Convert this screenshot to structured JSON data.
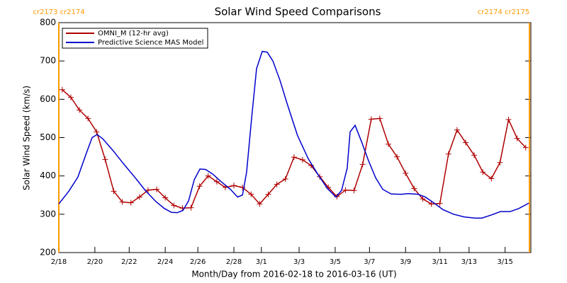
{
  "chart_data": {
    "type": "line",
    "title": "Solar Wind Speed Comparisons",
    "x_label": "Month/Day from 2016-02-18 to 2016-03-16 (UT)",
    "y_label": "Solar Wind Speed (km/s)",
    "xlim": [
      0,
      27.5
    ],
    "ylim": [
      200,
      800
    ],
    "yticks": [
      200,
      300,
      400,
      500,
      600,
      700,
      800
    ],
    "xticks": [
      {
        "value": 0,
        "label": "2/18"
      },
      {
        "value": 2.1,
        "label": "2/20"
      },
      {
        "value": 4.1,
        "label": "2/22"
      },
      {
        "value": 6.2,
        "label": "2/24"
      },
      {
        "value": 8.1,
        "label": "2/26"
      },
      {
        "value": 10.2,
        "label": "2/28"
      },
      {
        "value": 11.8,
        "label": "3/1"
      },
      {
        "value": 14.0,
        "label": "3/3"
      },
      {
        "value": 16.1,
        "label": "3/5"
      },
      {
        "value": 18.1,
        "label": "3/7"
      },
      {
        "value": 20.2,
        "label": "3/9"
      },
      {
        "value": 22.2,
        "label": "3/11"
      },
      {
        "value": 23.9,
        "label": "3/13"
      },
      {
        "value": 26.0,
        "label": "3/15"
      }
    ],
    "legend": "top-left",
    "markers": [
      {
        "x": 0,
        "label": "cr2173 cr2174",
        "color": "#ff9900"
      },
      {
        "x": 27.42,
        "label": "cr2174 cr2175",
        "color": "#ff9900"
      }
    ],
    "series": [
      {
        "name": "OMNI_M (12-hr avg)",
        "color": "#b00000",
        "marker": "+",
        "x": [
          0.2,
          0.7,
          1.2,
          1.7,
          2.2,
          2.7,
          3.2,
          3.7,
          4.2,
          4.7,
          5.2,
          5.7,
          6.2,
          6.7,
          7.2,
          7.7,
          8.2,
          8.7,
          9.2,
          9.7,
          10.2,
          10.7,
          11.2,
          11.7,
          12.2,
          12.7,
          13.2,
          13.7,
          14.2,
          14.7,
          15.2,
          15.7,
          16.2,
          16.7,
          17.2,
          17.7,
          18.2,
          18.7,
          19.2,
          19.7,
          20.2,
          20.7,
          21.2,
          21.7,
          22.2,
          22.7,
          23.2,
          23.7,
          24.2,
          24.7,
          25.2,
          25.7,
          26.2,
          26.7,
          27.2
        ],
        "values": [
          625,
          605,
          572,
          550,
          515,
          443,
          360,
          332,
          330,
          345,
          363,
          365,
          343,
          323,
          316,
          317,
          373,
          400,
          385,
          370,
          375,
          370,
          352,
          327,
          352,
          378,
          392,
          449,
          442,
          427,
          398,
          370,
          346,
          363,
          362,
          430,
          548,
          550,
          483,
          450,
          407,
          367,
          340,
          327,
          328,
          457,
          520,
          487,
          454,
          410,
          393,
          435,
          547,
          498,
          474
        ]
      },
      {
        "name": "Predictive Science MAS Model",
        "color": "#0000cc",
        "x": [
          0,
          0.58,
          1.11,
          1.61,
          1.94,
          2.23,
          2.56,
          3.18,
          3.8,
          4.42,
          5.04,
          5.66,
          6.15,
          6.56,
          6.89,
          7.23,
          7.56,
          7.89,
          8.22,
          8.55,
          8.96,
          9.46,
          10.0,
          10.41,
          10.7,
          10.94,
          11.23,
          11.52,
          11.85,
          12.14,
          12.47,
          12.88,
          13.29,
          13.91,
          14.53,
          15.15,
          15.65,
          16.14,
          16.47,
          16.8,
          16.97,
          17.26,
          17.63,
          18.04,
          18.46,
          18.87,
          19.36,
          19.94,
          20.36,
          20.93,
          21.35,
          21.84,
          22.38,
          23.0,
          23.62,
          24.24,
          24.65,
          25.19,
          25.73,
          26.3,
          26.8,
          27.38
        ],
        "values": [
          327,
          360,
          397,
          460,
          500,
          508,
          497,
          465,
          430,
          397,
          362,
          333,
          315,
          305,
          304,
          310,
          335,
          390,
          418,
          417,
          405,
          385,
          365,
          345,
          350,
          410,
          550,
          680,
          725,
          723,
          700,
          650,
          590,
          505,
          445,
          400,
          367,
          345,
          362,
          420,
          515,
          532,
          490,
          440,
          395,
          365,
          353,
          352,
          354,
          352,
          345,
          330,
          312,
          300,
          293,
          290,
          290,
          298,
          307,
          307,
          315,
          329
        ]
      }
    ]
  }
}
